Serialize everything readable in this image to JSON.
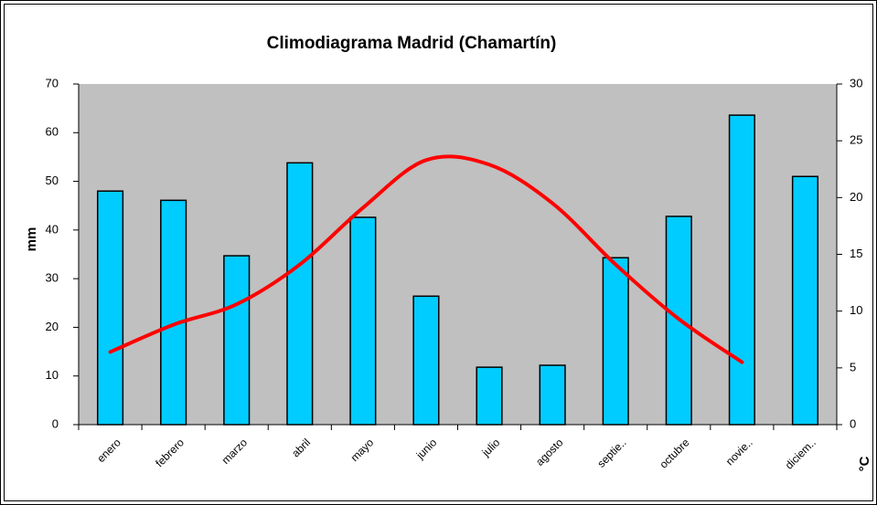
{
  "chart_data": {
    "type": "bar",
    "title": "Climodiagrama Madrid (Chamartín)",
    "y_label": "mm",
    "y2_label": "°C",
    "categories": [
      "enero",
      "febrero",
      "marzo",
      "abril",
      "mayo",
      "junio",
      "julio",
      "agosto",
      "septie..",
      "octubre",
      "novie..",
      "diciem.."
    ],
    "series": [
      {
        "type": "bar",
        "color": "#00ccff",
        "values": [
          48.0,
          46.1,
          34.7,
          53.8,
          42.6,
          26.4,
          11.8,
          12.2,
          34.3,
          42.8,
          63.6,
          51.0
        ]
      },
      {
        "type": "line",
        "color": "#ff0000",
        "axis": "y2",
        "values": [
          6.4,
          8.8,
          10.6,
          14.1,
          19.1,
          23.3,
          22.9,
          19.5,
          14.1,
          9.3,
          5.5,
          null
        ]
      }
    ],
    "ylim": [
      0,
      70
    ],
    "yticks": [
      0,
      10,
      20,
      30,
      40,
      50,
      60,
      70
    ],
    "y2lim": [
      0,
      30
    ],
    "y2ticks": [
      0,
      5,
      10,
      15,
      20,
      25,
      30
    ],
    "plot_background": "#c0c0c0"
  }
}
